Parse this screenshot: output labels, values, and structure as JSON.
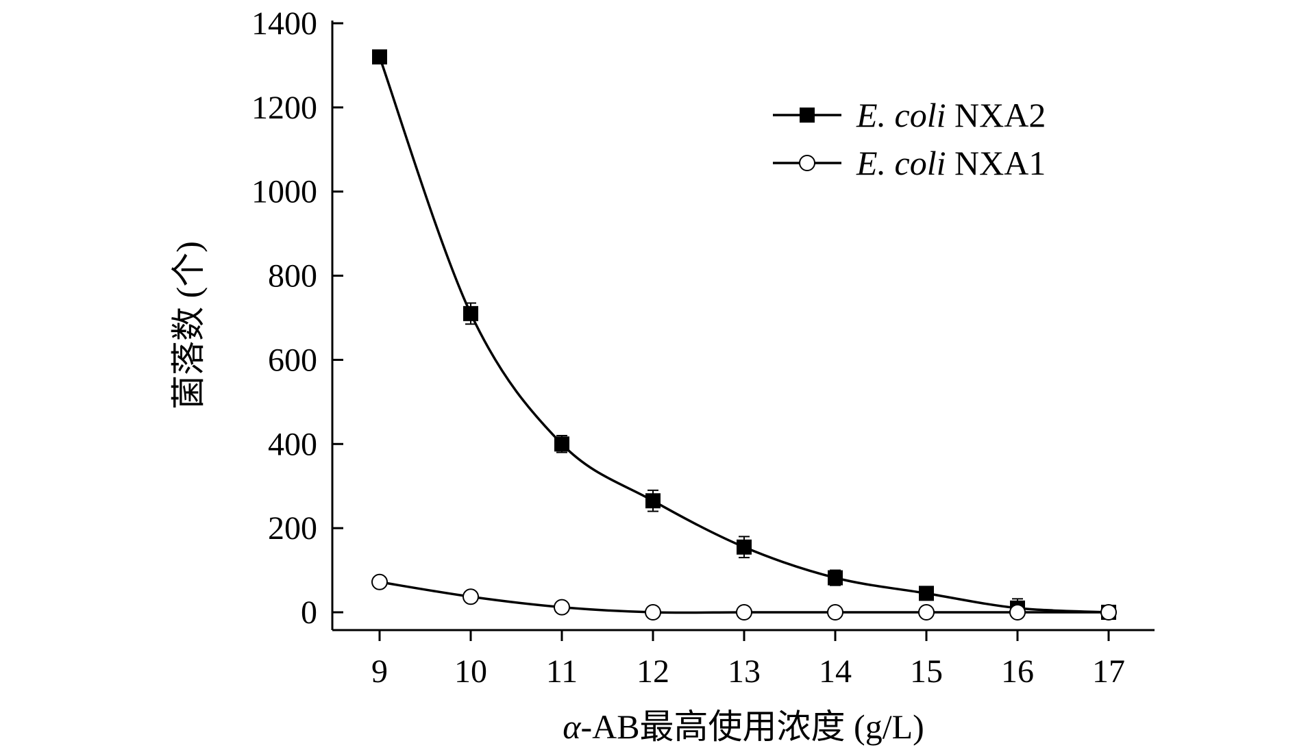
{
  "chart_data": {
    "type": "line",
    "title": "",
    "xlabel_prefix": "α",
    "xlabel_rest": "-AB最高使用浓度 (g/L)",
    "ylabel": "菌落数 (个)",
    "x": [
      9,
      10,
      11,
      12,
      13,
      14,
      15,
      16,
      17
    ],
    "x_ticks": [
      "9",
      "10",
      "11",
      "12",
      "13",
      "14",
      "15",
      "16",
      "17"
    ],
    "y_ticks": [
      "0",
      "200",
      "400",
      "600",
      "800",
      "1000",
      "1200",
      "1400"
    ],
    "xlim": [
      8.5,
      17.5
    ],
    "ylim": [
      -40,
      1400
    ],
    "legend_position": "top-right",
    "series": [
      {
        "name": "NXA2",
        "name_italic": "E. coli",
        "name_rest": " NXA2",
        "marker": "filled-square",
        "values": [
          1320,
          710,
          400,
          265,
          155,
          82,
          45,
          10,
          0
        ],
        "errors": [
          15,
          25,
          20,
          25,
          25,
          18,
          15,
          22,
          0
        ]
      },
      {
        "name": "NXA1",
        "name_italic": "E. coli",
        "name_rest": " NXA1",
        "marker": "open-circle",
        "values": [
          72,
          37,
          12,
          0,
          0,
          0,
          0,
          0,
          0
        ],
        "errors": [
          0,
          0,
          0,
          0,
          0,
          0,
          0,
          0,
          0
        ]
      }
    ]
  }
}
